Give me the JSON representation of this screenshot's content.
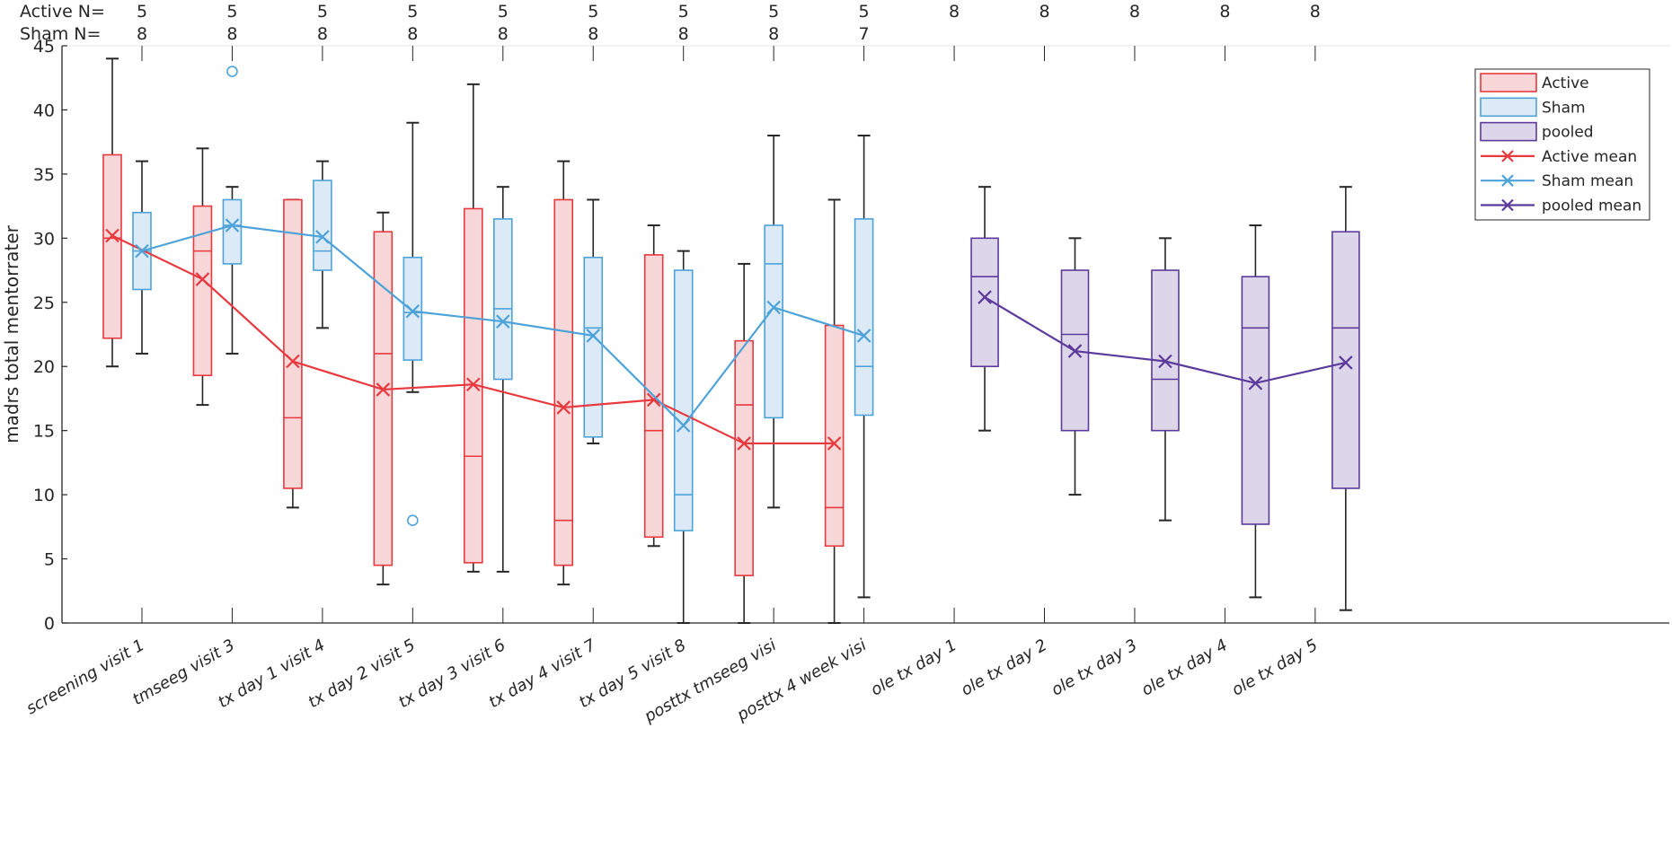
{
  "chart_data": {
    "type": "box",
    "title": "",
    "xlabel": "",
    "ylabel": "madrs total mentorrater",
    "ylim": [
      0,
      45
    ],
    "yticks": [
      0,
      5,
      10,
      15,
      20,
      25,
      30,
      35,
      40,
      45
    ],
    "grid": false,
    "legend_position": "top-right",
    "categories": [
      "screening visit 1",
      "tmseeg visit 3",
      "tx day 1 visit 4",
      "tx day 2 visit 5",
      "tx day 3 visit 6",
      "tx day 4 visit 7",
      "tx day 5 visit 8",
      "posttx tmseeg visi",
      "posttx 4 week visi",
      "ole tx day 1",
      "ole tx day 2",
      "ole tx day 3",
      "ole tx day 4",
      "ole tx day 5"
    ],
    "n_header": {
      "active_label": "Active N=",
      "sham_label": "Sham N=",
      "active_n": [
        "5",
        "5",
        "5",
        "5",
        "5",
        "5",
        "5",
        "5",
        "5",
        "8",
        "8",
        "8",
        "8",
        "8"
      ],
      "sham_n": [
        "8",
        "8",
        "8",
        "8",
        "8",
        "8",
        "8",
        "8",
        "7",
        "",
        "",
        "",
        "",
        ""
      ]
    },
    "colors": {
      "active": "#e8393f",
      "active_fill": "#f8d7d8",
      "sham": "#4da3d9",
      "sham_fill": "#dbeaf6",
      "pooled": "#5b3a9b",
      "pooled_fill": "#ddd6ea",
      "whisker": "#262626"
    },
    "series": [
      {
        "name": "Active",
        "offset": "left",
        "boxes": [
          {
            "cat": 0,
            "q1": 22.2,
            "median": 30,
            "q3": 36.5,
            "lo": 20,
            "hi": 44,
            "outliers": []
          },
          {
            "cat": 1,
            "q1": 19.3,
            "median": 29,
            "q3": 32.5,
            "lo": 17,
            "hi": 37,
            "outliers": []
          },
          {
            "cat": 2,
            "q1": 10.5,
            "median": 16,
            "q3": 33,
            "lo": 9,
            "hi": 33,
            "outliers": []
          },
          {
            "cat": 3,
            "q1": 4.5,
            "median": 21,
            "q3": 30.5,
            "lo": 3,
            "hi": 32,
            "outliers": []
          },
          {
            "cat": 4,
            "q1": 4.7,
            "median": 13,
            "q3": 32.3,
            "lo": 4,
            "hi": 42,
            "outliers": []
          },
          {
            "cat": 5,
            "q1": 4.5,
            "median": 8,
            "q3": 33,
            "lo": 3,
            "hi": 36,
            "outliers": []
          },
          {
            "cat": 6,
            "q1": 6.7,
            "median": 15,
            "q3": 28.7,
            "lo": 6,
            "hi": 31,
            "outliers": []
          },
          {
            "cat": 7,
            "q1": 3.7,
            "median": 17,
            "q3": 22,
            "lo": 0,
            "hi": 28,
            "outliers": []
          },
          {
            "cat": 8,
            "q1": 6,
            "median": 9,
            "q3": 23.2,
            "lo": 0,
            "hi": 33,
            "outliers": []
          }
        ]
      },
      {
        "name": "Sham",
        "offset": "center",
        "boxes": [
          {
            "cat": 0,
            "q1": 26,
            "median": 29,
            "q3": 32,
            "lo": 21,
            "hi": 36,
            "outliers": []
          },
          {
            "cat": 1,
            "q1": 28,
            "median": 31,
            "q3": 33,
            "lo": 21,
            "hi": 34,
            "outliers": [
              43
            ]
          },
          {
            "cat": 2,
            "q1": 27.5,
            "median": 29,
            "q3": 34.5,
            "lo": 23,
            "hi": 36,
            "outliers": []
          },
          {
            "cat": 3,
            "q1": 20.5,
            "median": 24.2,
            "q3": 28.5,
            "lo": 18,
            "hi": 39,
            "outliers": [
              8
            ]
          },
          {
            "cat": 4,
            "q1": 19,
            "median": 24.5,
            "q3": 31.5,
            "lo": 4,
            "hi": 34,
            "outliers": []
          },
          {
            "cat": 5,
            "q1": 14.5,
            "median": 23,
            "q3": 28.5,
            "lo": 14,
            "hi": 33,
            "outliers": []
          },
          {
            "cat": 6,
            "q1": 7.2,
            "median": 10,
            "q3": 27.5,
            "lo": 0,
            "hi": 29,
            "outliers": []
          },
          {
            "cat": 7,
            "q1": 16,
            "median": 28,
            "q3": 31,
            "lo": 9,
            "hi": 38,
            "outliers": []
          },
          {
            "cat": 8,
            "q1": 16.2,
            "median": 20,
            "q3": 31.5,
            "lo": 2,
            "hi": 38,
            "outliers": []
          }
        ]
      },
      {
        "name": "pooled",
        "offset": "right",
        "boxes": [
          {
            "cat": 9,
            "q1": 20,
            "median": 27,
            "q3": 30,
            "lo": 15,
            "hi": 34,
            "outliers": []
          },
          {
            "cat": 10,
            "q1": 15,
            "median": 22.5,
            "q3": 27.5,
            "lo": 10,
            "hi": 30,
            "outliers": []
          },
          {
            "cat": 11,
            "q1": 15,
            "median": 19,
            "q3": 27.5,
            "lo": 8,
            "hi": 30,
            "outliers": []
          },
          {
            "cat": 12,
            "q1": 7.7,
            "median": 23,
            "q3": 27,
            "lo": 2,
            "hi": 31,
            "outliers": []
          },
          {
            "cat": 13,
            "q1": 10.5,
            "median": 23,
            "q3": 30.5,
            "lo": 1,
            "hi": 34,
            "outliers": []
          }
        ]
      }
    ],
    "mean_lines": [
      {
        "name": "Active mean",
        "group": "Active",
        "values": [
          30.2,
          26.8,
          20.4,
          18.2,
          18.6,
          16.8,
          17.4,
          14,
          14
        ]
      },
      {
        "name": "Sham mean",
        "group": "Sham",
        "values": [
          29,
          31,
          30.1,
          24.3,
          23.5,
          22.4,
          15.4,
          24.6,
          22.4
        ]
      },
      {
        "name": "pooled mean",
        "group": "pooled",
        "values": [
          25.4,
          21.2,
          20.4,
          18.7,
          20.3
        ]
      }
    ],
    "legend": [
      "Active",
      "Sham",
      "pooled",
      "Active mean",
      "Sham mean",
      "pooled mean"
    ]
  }
}
